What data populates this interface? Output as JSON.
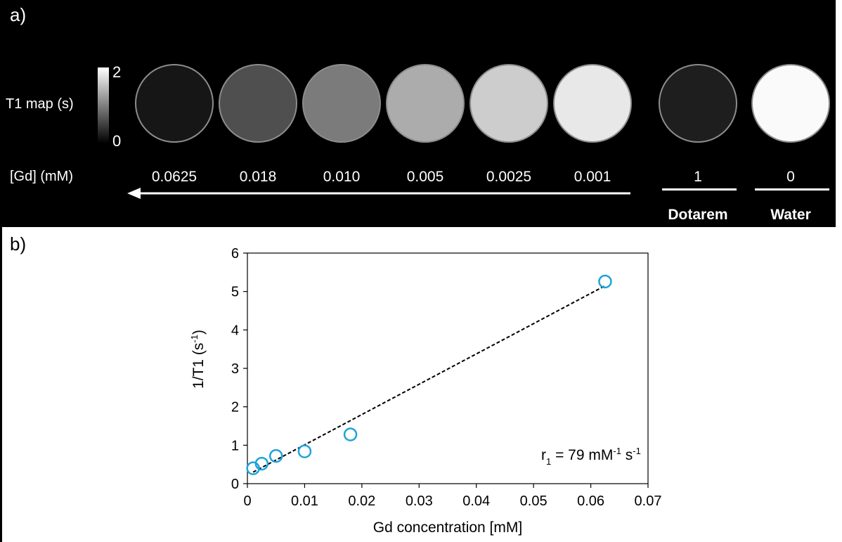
{
  "panel_a": {
    "label": "a)",
    "colorbar": {
      "title": "T1 map (s)",
      "max": "2",
      "min": "0"
    },
    "concentration_label": "[Gd] (mM)",
    "phantoms": [
      {
        "concentration": "0.0625",
        "fill": "#161616"
      },
      {
        "concentration": "0.018",
        "fill": "#4f4f4f"
      },
      {
        "concentration": "0.010",
        "fill": "#7b7b7b"
      },
      {
        "concentration": "0.005",
        "fill": "#acacac"
      },
      {
        "concentration": "0.0025",
        "fill": "#cdcdcd"
      },
      {
        "concentration": "0.001",
        "fill": "#e8e8e8"
      }
    ],
    "references": [
      {
        "value": "1",
        "name": "Dotarem",
        "fill": "#1e1e1e"
      },
      {
        "value": "0",
        "name": "Water",
        "fill": "#fafafa"
      }
    ]
  },
  "panel_b": {
    "label": "b)"
  },
  "chart_data": {
    "type": "scatter",
    "xlabel": "Gd concentration [mM]",
    "ylabel": "1/T1 (s-1)",
    "xlim": [
      0,
      0.07
    ],
    "ylim": [
      0,
      6
    ],
    "x_ticks": [
      "0",
      "0.01",
      "0.02",
      "0.03",
      "0.04",
      "0.05",
      "0.06",
      "0.07"
    ],
    "y_ticks": [
      "0",
      "1",
      "2",
      "3",
      "4",
      "5",
      "6"
    ],
    "series": [
      {
        "marker_color": "#1fa3d8",
        "x": [
          0.001,
          0.0025,
          0.005,
          0.01,
          0.018,
          0.0625
        ],
        "y": [
          0.4,
          0.52,
          0.72,
          0.84,
          1.28,
          5.26
        ]
      }
    ],
    "fit_line": {
      "x": [
        0.001,
        0.0625
      ],
      "y": [
        0.3,
        5.15
      ],
      "style": "dashed"
    },
    "annotation": "r1 = 79 mM-1 s-1",
    "grid": false
  }
}
